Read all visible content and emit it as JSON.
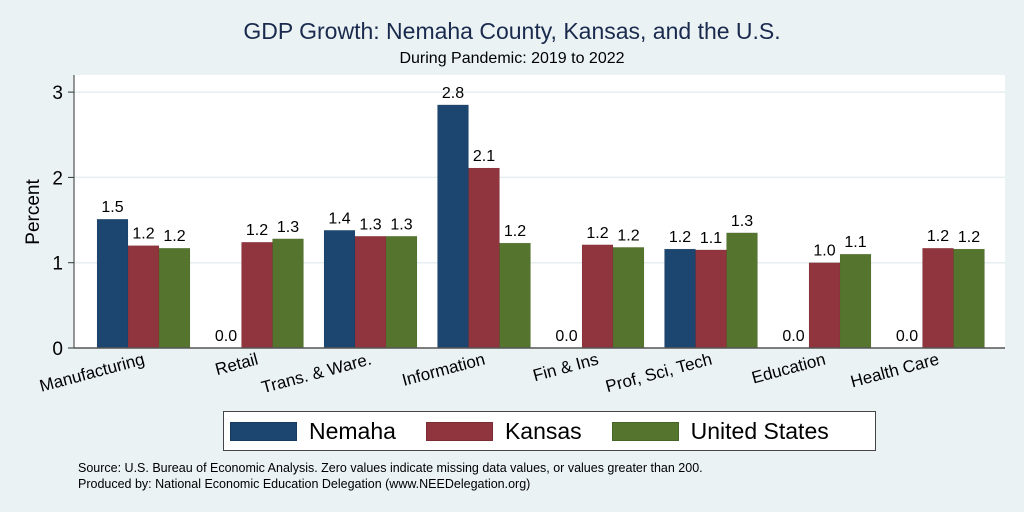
{
  "chart_data": {
    "type": "bar",
    "title": "GDP Growth: Nemaha County, Kansas, and the U.S.",
    "subtitle": "During Pandemic: 2019 to 2022",
    "xlabel": "",
    "ylabel": "Percent",
    "ylim": [
      0,
      3.2
    ],
    "yticks": [
      0,
      1,
      2,
      3
    ],
    "grid": true,
    "legend_position": "bottom",
    "categories": [
      "Manufacturing",
      "Retail",
      "Trans. & Ware.",
      "Information",
      "Fin & Ins",
      "Prof, Sci, Tech",
      "Education",
      "Health Care"
    ],
    "series": [
      {
        "name": "Nemaha",
        "color": "#1c466f",
        "values": [
          1.51,
          0.0,
          1.38,
          2.85,
          0.0,
          1.16,
          0.0,
          0.0
        ],
        "labels": [
          "1.5",
          "0.0",
          "1.4",
          "2.8",
          "0.0",
          "1.2",
          "0.0",
          "0.0"
        ]
      },
      {
        "name": "Kansas",
        "color": "#90353d",
        "values": [
          1.2,
          1.24,
          1.31,
          2.11,
          1.21,
          1.15,
          1.0,
          1.17
        ],
        "labels": [
          "1.2",
          "1.2",
          "1.3",
          "2.1",
          "1.2",
          "1.1",
          "1.0",
          "1.2"
        ]
      },
      {
        "name": "United States",
        "color": "#55752f",
        "values": [
          1.17,
          1.28,
          1.31,
          1.23,
          1.18,
          1.35,
          1.1,
          1.16
        ],
        "labels": [
          "1.2",
          "1.3",
          "1.3",
          "1.2",
          "1.2",
          "1.3",
          "1.1",
          "1.2"
        ]
      }
    ],
    "notes": [
      "Source: U.S. Bureau of Economic Analysis. Zero values indicate missing data values, or values greater than 200.",
      "Produced by: National Economic Education Delegation (www.NEEDelegation.org)"
    ]
  }
}
